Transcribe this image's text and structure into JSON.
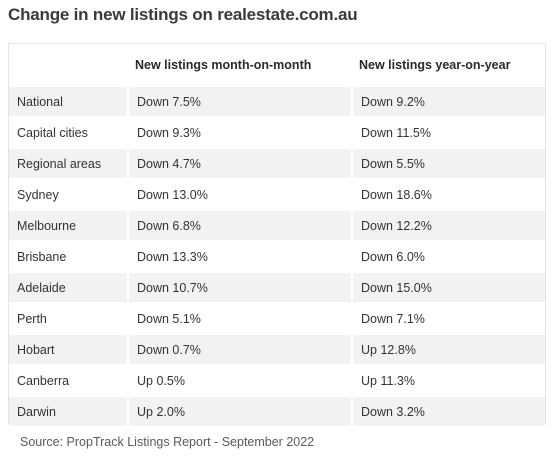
{
  "title": "Change in new listings on realestate.com.au",
  "table": {
    "headers": [
      "",
      "New listings month-on-month",
      "New listings year-on-year"
    ],
    "rows": [
      [
        "National",
        "Down 7.5%",
        "Down 9.2%"
      ],
      [
        "Capital cities",
        "Down 9.3%",
        "Down 11.5%"
      ],
      [
        "Regional areas",
        "Down 4.7%",
        "Down 5.5%"
      ],
      [
        "Sydney",
        "Down 13.0%",
        "Down 18.6%"
      ],
      [
        "Melbourne",
        "Down 6.8%",
        "Down 12.2%"
      ],
      [
        "Brisbane",
        "Down 13.3%",
        "Down 6.0%"
      ],
      [
        "Adelaide",
        "Down 10.7%",
        "Down 15.0%"
      ],
      [
        "Perth",
        "Down 5.1%",
        "Down 7.1%"
      ],
      [
        "Hobart",
        "Down 0.7%",
        "Up 12.8%"
      ],
      [
        "Canberra",
        "Up 0.5%",
        "Up 11.3%"
      ],
      [
        "Darwin",
        "Up 2.0%",
        "Down 3.2%"
      ]
    ]
  },
  "source": "Source: PropTrack Listings Report - September 2022"
}
